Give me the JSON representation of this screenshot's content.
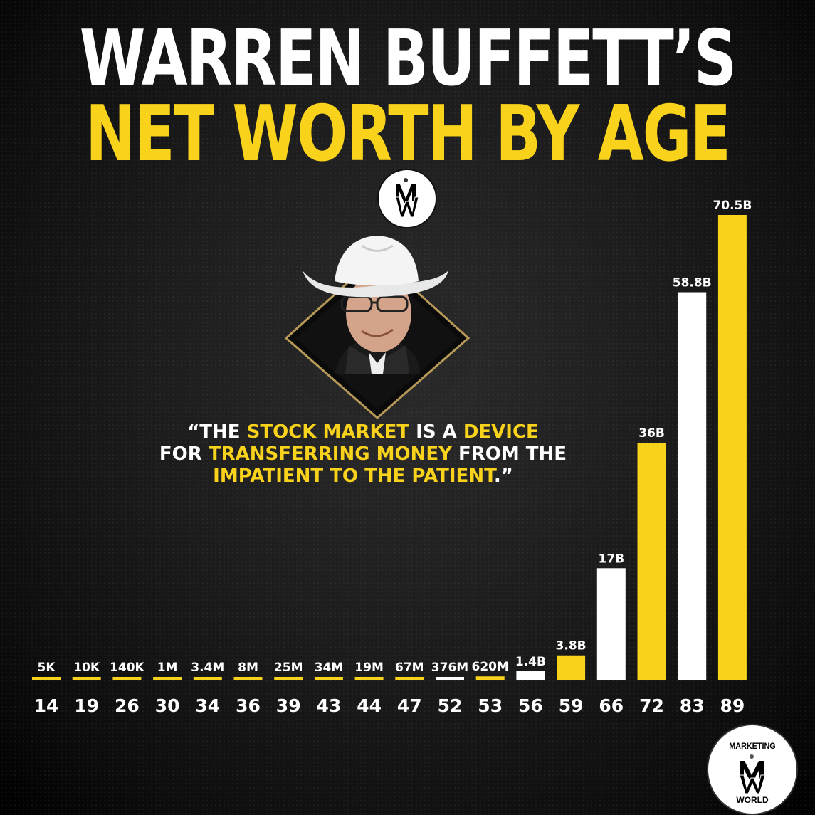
{
  "title": {
    "line1": "WARREN BUFFETT’S",
    "line2": "NET WORTH BY AGE"
  },
  "quote": {
    "p1": "“THE ",
    "h1": "STOCK MARKET",
    "p2": " IS A ",
    "h2": "DEVICE",
    "p3": "FOR ",
    "h3": "TRANSFERRING MONEY",
    "p4": " FROM THE",
    "h4": "IMPATIENT TO THE PATIENT",
    "p5": ".”"
  },
  "logo": {
    "top_text": "MARKETING",
    "bottom_text": "WORLD"
  },
  "colors": {
    "accent_yellow": "#f9d31b",
    "white": "#ffffff",
    "background": "#1a1a1a"
  },
  "chart_data": {
    "type": "bar",
    "title": "",
    "xlabel": "",
    "ylabel": "",
    "categories": [
      "14",
      "19",
      "26",
      "30",
      "34",
      "36",
      "39",
      "43",
      "44",
      "47",
      "52",
      "53",
      "56",
      "59",
      "66",
      "72",
      "83",
      "89"
    ],
    "labels": [
      "5K",
      "10K",
      "140K",
      "1M",
      "3.4M",
      "8M",
      "25M",
      "34M",
      "19M",
      "67M",
      "376M",
      "620M",
      "1.4B",
      "3.8B",
      "17B",
      "36B",
      "58.8B",
      "70.5B"
    ],
    "values": [
      5e-06,
      1e-05,
      0.00014,
      0.001,
      0.0034,
      0.008,
      0.025,
      0.034,
      0.019,
      0.067,
      0.376,
      0.62,
      1.4,
      3.8,
      17,
      36,
      58.8,
      70.5
    ],
    "value_unit": "billions USD",
    "bar_colors": [
      "#f9d31b",
      "#f9d31b",
      "#f9d31b",
      "#f9d31b",
      "#f9d31b",
      "#f9d31b",
      "#f9d31b",
      "#f9d31b",
      "#f9d31b",
      "#f9d31b",
      "#ffffff",
      "#f9d31b",
      "#ffffff",
      "#f9d31b",
      "#ffffff",
      "#f9d31b",
      "#ffffff",
      "#f9d31b"
    ],
    "grid": false,
    "legend": "none"
  }
}
